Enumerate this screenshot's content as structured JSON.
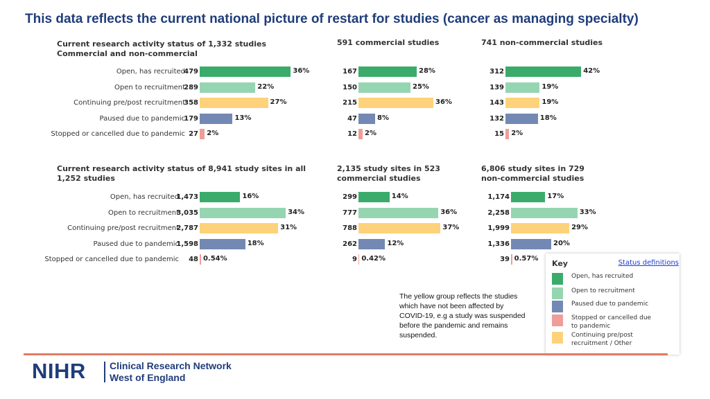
{
  "title": "This data reflects the current national picture of restart for studies (cancer as managing specialty)",
  "colors": {
    "open_recruited": "#3bab6c",
    "open_recruitment": "#96d5b1",
    "continuing": "#fdd27a",
    "paused": "#7389b3",
    "stopped": "#ee9e98"
  },
  "row_labels": [
    "Open, has recruited",
    "Open to recruitment",
    "Continuing pre/post recruitment",
    "Paused due to pandemic",
    "Stopped or cancelled due to pandemic"
  ],
  "chart_data": [
    {
      "type": "bar",
      "title": "Current research activity status of 1,332 studies\nCommercial and non-commercial",
      "categories": [
        "Open, has recruited",
        "Open to recruitment",
        "Continuing pre/post recruitment",
        "Paused due to pandemic",
        "Stopped or cancelled due to pandemic"
      ],
      "counts": [
        "479",
        "289",
        "358",
        "179",
        "27"
      ],
      "values": [
        36,
        22,
        27,
        13,
        2
      ],
      "labels": [
        "36%",
        "22%",
        "27%",
        "13%",
        "2%"
      ]
    },
    {
      "type": "bar",
      "title": "591 commercial studies",
      "categories": [
        "Open, has recruited",
        "Open to recruitment",
        "Continuing pre/post recruitment",
        "Paused due to pandemic",
        "Stopped or cancelled due to pandemic"
      ],
      "counts": [
        "167",
        "150",
        "215",
        "47",
        "12"
      ],
      "values": [
        28,
        25,
        36,
        8,
        2
      ],
      "labels": [
        "28%",
        "25%",
        "36%",
        "8%",
        "2%"
      ]
    },
    {
      "type": "bar",
      "title": "741 non-commercial studies",
      "categories": [
        "Open, has recruited",
        "Open to recruitment",
        "Continuing pre/post recruitment",
        "Paused due to pandemic",
        "Stopped or cancelled due to pandemic"
      ],
      "counts": [
        "312",
        "139",
        "143",
        "132",
        "15"
      ],
      "values": [
        42,
        19,
        19,
        18,
        2
      ],
      "labels": [
        "42%",
        "19%",
        "19%",
        "18%",
        "2%"
      ]
    },
    {
      "type": "bar",
      "title": "Current research activity status of 8,941 study sites in all\n1,252 studies",
      "categories": [
        "Open, has recruited",
        "Open to recruitment",
        "Continuing pre/post recruitment",
        "Paused due to pandemic",
        "Stopped or cancelled due to pandemic"
      ],
      "counts": [
        "1,473",
        "3,035",
        "2,787",
        "1,598",
        "48"
      ],
      "values": [
        16,
        34,
        31,
        18,
        0.54
      ],
      "labels": [
        "16%",
        "34%",
        "31%",
        "18%",
        "0.54%"
      ]
    },
    {
      "type": "bar",
      "title": "2,135 study sites in 523\ncommercial studies",
      "categories": [
        "Open, has recruited",
        "Open to recruitment",
        "Continuing pre/post recruitment",
        "Paused due to pandemic",
        "Stopped or cancelled due to pandemic"
      ],
      "counts": [
        "299",
        "777",
        "788",
        "262",
        "9"
      ],
      "values": [
        14,
        36,
        37,
        12,
        0.42
      ],
      "labels": [
        "14%",
        "36%",
        "37%",
        "12%",
        "0.42%"
      ]
    },
    {
      "type": "bar",
      "title": "6,806 study sites in 729\nnon-commercial studies",
      "categories": [
        "Open, has recruited",
        "Open to recruitment",
        "Continuing pre/post recruitment",
        "Paused due to pandemic",
        "Stopped or cancelled due to pandemic"
      ],
      "counts": [
        "1,174",
        "2,258",
        "1,999",
        "1,336",
        "39"
      ],
      "values": [
        17,
        33,
        29,
        20,
        0.57
      ],
      "labels": [
        "17%",
        "33%",
        "29%",
        "20%",
        "0.57%"
      ]
    }
  ],
  "note": "The yellow group reflects the studies which have not been affected by COVID-19, e.g a study was suspended before the pandemic and remains suspended.",
  "key": {
    "title": "Key",
    "link": "Status definitions",
    "items": [
      {
        "label": "Open, has recruited",
        "color": "#3bab6c"
      },
      {
        "label": "Open to recruitment",
        "color": "#96d5b1"
      },
      {
        "label": "Paused due to pandemic",
        "color": "#7389b3"
      },
      {
        "label": "Stopped or cancelled due to pandemic",
        "color": "#ee9e98"
      },
      {
        "label": "Continuing pre/post recruitment / Other",
        "color": "#fdd27a"
      }
    ]
  },
  "footer": {
    "logo": "NIHR",
    "network_line1": "Clinical Research Network",
    "network_line2": "West of England"
  }
}
